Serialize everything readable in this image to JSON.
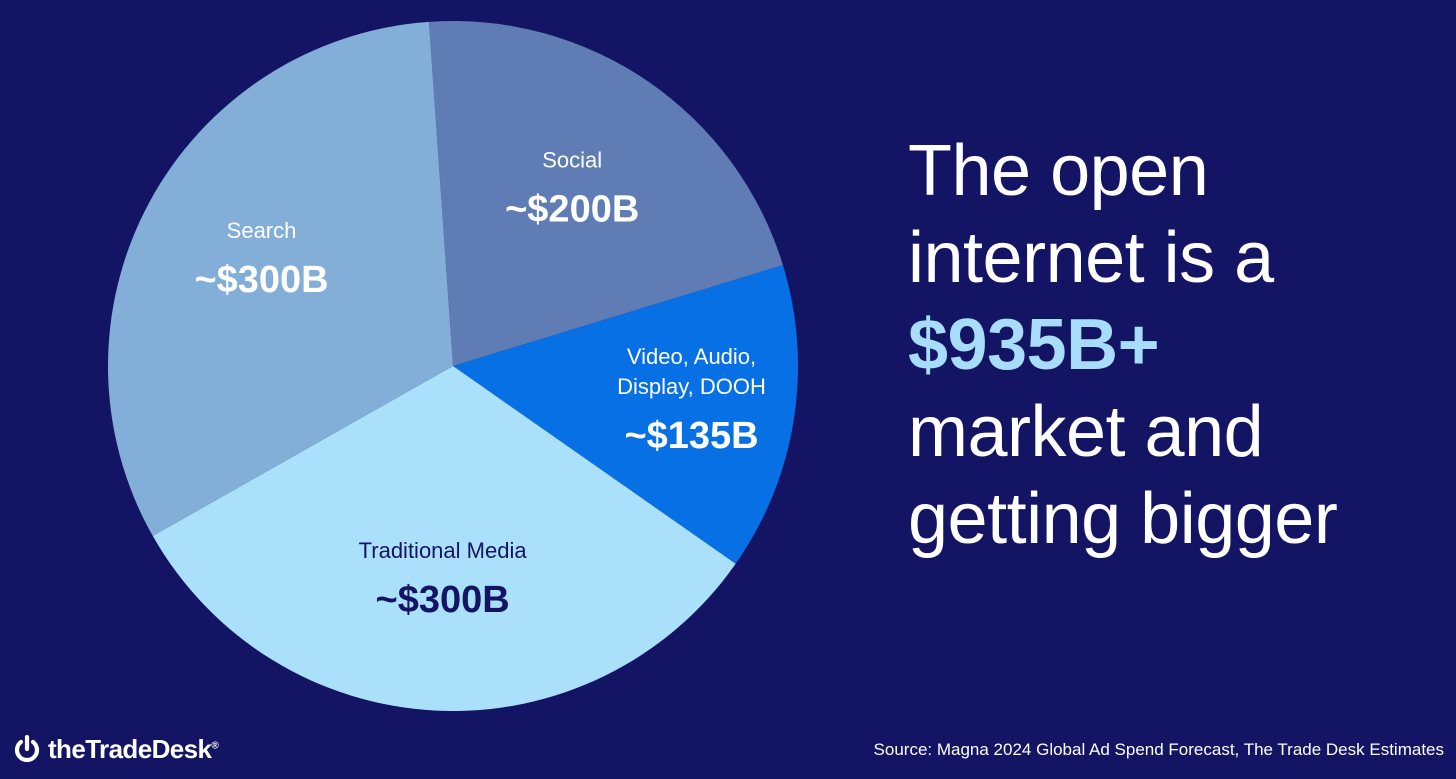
{
  "chart_data": {
    "type": "pie",
    "slices": [
      {
        "label": "Social",
        "value": 200,
        "value_label": "~$200B",
        "color": "#5f7cb4",
        "label_color": "#ffffff"
      },
      {
        "label": "Video, Audio, Display, DOOH",
        "label_lines": [
          "Video, Audio,",
          "Display, DOOH"
        ],
        "value": 135,
        "value_label": "~$135B",
        "color": "#0670e4",
        "label_color": "#ffffff"
      },
      {
        "label": "Traditional Media",
        "value": 300,
        "value_label": "~$300B",
        "color": "#abe0fb",
        "label_color": "#141464"
      },
      {
        "label": "Search",
        "value": 300,
        "value_label": "~$300B",
        "color": "#82aed8",
        "label_color": "#ffffff"
      }
    ]
  },
  "headline": {
    "line1": "The open",
    "line2": "internet is a",
    "highlight": "$935B+",
    "line4": "market and",
    "line5": "getting bigger"
  },
  "footer": {
    "logo_text": "theTradeDesk",
    "logo_mark": "®",
    "source": "Source: Magna 2024 Global Ad Spend Forecast, The Trade Desk Estimates"
  },
  "colors": {
    "background": "#141464",
    "headline": "#ffffff",
    "accent": "#a8dcfb"
  }
}
